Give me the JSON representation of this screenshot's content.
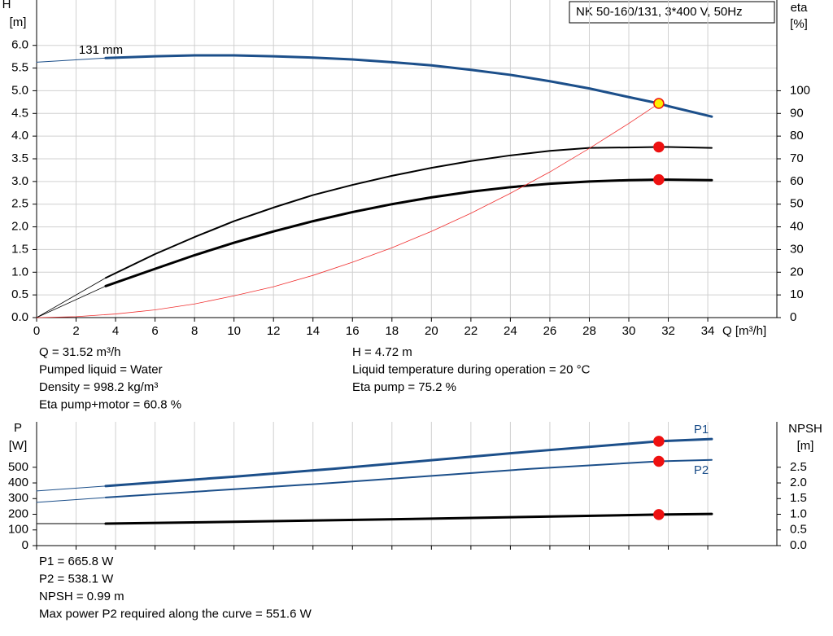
{
  "chart_data": [
    {
      "type": "line",
      "title": "NK 50-160/131, 3*400 V, 50Hz",
      "ylabel": "H",
      "yunit": "[m]",
      "y2label": "eta",
      "y2unit": "[%]",
      "xlabel": "Q [m³/h]",
      "xlim": [
        0,
        37.5
      ],
      "xticks": [
        0,
        2,
        4,
        6,
        8,
        10,
        12,
        14,
        16,
        18,
        20,
        22,
        24,
        26,
        28,
        30,
        32,
        34
      ],
      "ylim": [
        0,
        7
      ],
      "yticks": [
        {
          "value": 0,
          "label": "0.0"
        },
        0.5,
        {
          "value": 1,
          "label": "1.0"
        },
        1.5,
        {
          "value": 2,
          "label": "2.0"
        },
        2.5,
        {
          "value": 3,
          "label": "3.0"
        },
        3.5,
        {
          "value": 4,
          "label": "4.0"
        },
        4.5,
        {
          "value": 5,
          "label": "5.0"
        },
        5.5,
        {
          "value": 6,
          "label": "6.0"
        }
      ],
      "y2lim": [
        0,
        140
      ],
      "y2ticks": [
        0,
        10,
        20,
        30,
        40,
        50,
        60,
        70,
        80,
        90,
        100
      ],
      "grid": "both",
      "show_xtick_labels": true,
      "series": [
        {
          "name": "131 mm",
          "color": "#1c4f8a",
          "width": 3,
          "x": [
            3.5,
            6,
            8,
            10,
            12,
            14,
            16,
            18,
            20,
            22,
            24,
            26,
            28,
            30,
            31.52,
            32,
            34.2
          ],
          "values": [
            5.72,
            5.76,
            5.78,
            5.78,
            5.76,
            5.73,
            5.69,
            5.63,
            5.56,
            5.46,
            5.35,
            5.21,
            5.05,
            4.86,
            4.72,
            4.66,
            4.43
          ]
        },
        {
          "color": "#1c4f8a",
          "width": 1,
          "x": [
            0,
            3.5
          ],
          "values": [
            5.63,
            5.72
          ]
        },
        {
          "color": "#000000",
          "width": 2,
          "axis": "y2",
          "x": [
            3.5,
            6,
            8,
            10,
            12,
            14,
            16,
            18,
            20,
            22,
            24,
            26,
            28,
            30,
            31.52,
            32,
            34.2
          ],
          "values": [
            17.5,
            28,
            35.5,
            42.5,
            48.5,
            54,
            58.5,
            62.5,
            66,
            69,
            71.5,
            73.5,
            74.8,
            75,
            75.2,
            75.2,
            74.8
          ]
        },
        {
          "color": "#000000",
          "width": 0.8,
          "axis": "y2",
          "x": [
            0,
            3.5
          ],
          "values": [
            0,
            17.5
          ]
        },
        {
          "color": "#000000",
          "width": 3,
          "axis": "y2",
          "x": [
            3.5,
            6,
            8,
            10,
            12,
            14,
            16,
            18,
            20,
            22,
            24,
            26,
            28,
            30,
            31.52,
            32,
            34.2
          ],
          "values": [
            13.9,
            21.5,
            27.5,
            33,
            38,
            42.5,
            46.5,
            50,
            53,
            55.5,
            57.5,
            59,
            60,
            60.6,
            60.8,
            60.8,
            60.6
          ]
        },
        {
          "color": "#000000",
          "width": 0.8,
          "axis": "y2",
          "x": [
            0,
            3.5
          ],
          "values": [
            0,
            13.9
          ]
        },
        {
          "color": "#f03030",
          "width": 0.8,
          "x": [
            0,
            2,
            4,
            6,
            8,
            10,
            12,
            14,
            16,
            18,
            20,
            22,
            24,
            26,
            28,
            30,
            31.52
          ],
          "values": [
            0,
            0.02,
            0.08,
            0.17,
            0.3,
            0.48,
            0.68,
            0.93,
            1.22,
            1.54,
            1.9,
            2.3,
            2.74,
            3.21,
            3.73,
            4.28,
            4.72
          ]
        }
      ],
      "markers": [
        {
          "x": 31.52,
          "value": 4.72,
          "color": "#ffee00"
        },
        {
          "x": 31.52,
          "value": 75.2,
          "axis": "y2",
          "color": "#ee1111"
        },
        {
          "x": 31.52,
          "value": 60.8,
          "axis": "y2",
          "color": "#ee1111"
        }
      ],
      "annotations": [
        [
          "Q = 31.52 m³/h",
          "Pumped liquid = Water",
          "Density = 998.2 kg/m³",
          "Eta pump+motor = 60.8 %"
        ],
        [
          "H = 4.72 m",
          "Liquid temperature during operation = 20 °C",
          "Eta pump = 75.2 %"
        ]
      ]
    },
    {
      "type": "line",
      "ylabel": "P",
      "yunit": "[W]",
      "y2label": "NPSH",
      "y2unit": "[m]",
      "xlim": [
        0,
        37.5
      ],
      "xticks": [
        0,
        2,
        4,
        6,
        8,
        10,
        12,
        14,
        16,
        18,
        20,
        22,
        24,
        26,
        28,
        30,
        32,
        34
      ],
      "ylim": [
        0,
        790
      ],
      "yticks": [
        0,
        100,
        200,
        300,
        400,
        500
      ],
      "y2lim": [
        0,
        3.95
      ],
      "y2ticks": [
        {
          "value": 0,
          "label": "0.0"
        },
        0.5,
        {
          "value": 1,
          "label": "1.0"
        },
        1.5,
        {
          "value": 2,
          "label": "2.0"
        },
        2.5
      ],
      "grid": "x",
      "show_xtick_labels": false,
      "series": [
        {
          "name": "P1",
          "color": "#1c4f8a",
          "width": 3,
          "x": [
            3.5,
            10,
            15,
            20,
            25,
            31.52,
            34.2
          ],
          "values": [
            380,
            440,
            490,
            545,
            600,
            665.8,
            680
          ]
        },
        {
          "color": "#1c4f8a",
          "width": 1,
          "x": [
            0,
            3.5
          ],
          "values": [
            349,
            380
          ]
        },
        {
          "name": "P2",
          "color": "#1c4f8a",
          "width": 2,
          "x": [
            3.5,
            10,
            15,
            20,
            25,
            31.52,
            34.2
          ],
          "values": [
            307,
            360,
            400,
            445,
            490,
            538.1,
            547
          ]
        },
        {
          "color": "#1c4f8a",
          "width": 1,
          "x": [
            0,
            3.5
          ],
          "values": [
            276,
            307
          ]
        },
        {
          "color": "#000000",
          "width": 3,
          "axis": "y2",
          "x": [
            3.5,
            10,
            20,
            31.52,
            34.2
          ],
          "values": [
            0.7,
            0.76,
            0.86,
            0.99,
            1.01
          ]
        },
        {
          "color": "#000000",
          "width": 1,
          "axis": "y2",
          "x": [
            0,
            3.5
          ],
          "values": [
            0.7,
            0.7
          ]
        }
      ],
      "markers": [
        {
          "x": 31.52,
          "value": 665.8,
          "color": "#ee1111"
        },
        {
          "x": 31.52,
          "value": 538.1,
          "color": "#ee1111"
        },
        {
          "x": 31.52,
          "value": 0.99,
          "axis": "y2",
          "color": "#ee1111"
        }
      ],
      "annotations": [
        [
          "P1 = 665.8 W",
          "P2 = 538.1 W",
          "NPSH = 0.99 m",
          "Max power P2 required along the curve = 551.6 W"
        ]
      ]
    }
  ]
}
